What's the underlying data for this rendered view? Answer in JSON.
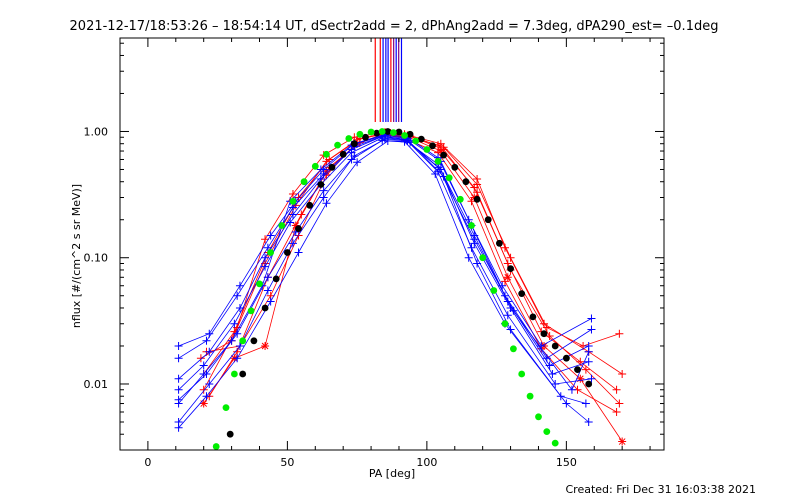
{
  "chart_data": {
    "type": "scatter",
    "title": "2021-12-17/18:53:26 – 18:54:14 UT, dSectr2add = 2, dPhAng2add = 7.3deg, dPA290_est= –0.1deg",
    "xlabel": "PA [deg]",
    "ylabel": "nflux [#/(cm^2 s sr MeV)]",
    "footer": "Created: Fri Dec 31 16:03:38 2021",
    "xlim": [
      -10,
      185
    ],
    "ylim": [
      0.003,
      5.5
    ],
    "yscale": "log",
    "x_ticks": [
      {
        "v": 0,
        "label": "0"
      },
      {
        "v": 50,
        "label": "50"
      },
      {
        "v": 100,
        "label": "100"
      },
      {
        "v": 150,
        "label": "150"
      }
    ],
    "y_ticks": [
      {
        "v": 0.01,
        "label": "0.01"
      },
      {
        "v": 0.1,
        "label": "0.10"
      },
      {
        "v": 1,
        "label": "1.00"
      }
    ],
    "colors": {
      "red": "#ff0000",
      "blue": "#0000ff",
      "green": "#00ee00",
      "black": "#000000",
      "purple": "#800080"
    },
    "vertical_markers": [
      {
        "x": 81.5,
        "color": "#ff0000"
      },
      {
        "x": 83.3,
        "color": "#ff0000"
      },
      {
        "x": 84.3,
        "color": "#0000ff"
      },
      {
        "x": 85.3,
        "color": "#0000ff"
      },
      {
        "x": 86.1,
        "color": "#0000ff"
      },
      {
        "x": 87.1,
        "color": "#ff0000"
      },
      {
        "x": 88.1,
        "color": "#800080"
      },
      {
        "x": 89.0,
        "color": "#0000ff"
      },
      {
        "x": 89.9,
        "color": "#800080"
      },
      {
        "x": 90.9,
        "color": "#0000ff"
      }
    ],
    "series": [
      {
        "color": "#ff0000",
        "marker": "plus",
        "x": [
          20,
          32,
          42,
          52,
          63,
          74,
          85,
          92,
          105,
          118,
          128,
          142,
          158,
          170
        ],
        "y": [
          0.009,
          0.028,
          0.14,
          0.32,
          0.65,
          0.9,
          0.99,
          0.95,
          0.8,
          0.42,
          0.12,
          0.03,
          0.018,
          0.012
        ]
      },
      {
        "color": "#ff0000",
        "marker": "plus",
        "x": [
          20,
          31,
          43,
          54,
          65,
          76,
          86,
          93,
          106,
          118,
          130,
          143,
          156,
          169
        ],
        "y": [
          0.012,
          0.026,
          0.11,
          0.3,
          0.6,
          0.88,
          0.98,
          0.93,
          0.75,
          0.38,
          0.1,
          0.028,
          0.02,
          0.025
        ]
      },
      {
        "color": "#ff0000",
        "marker": "plus",
        "x": [
          19,
          30,
          42,
          53,
          64,
          75,
          86,
          92,
          104,
          117,
          129,
          141,
          155,
          168
        ],
        "y": [
          0.016,
          0.022,
          0.09,
          0.26,
          0.58,
          0.86,
          0.97,
          0.94,
          0.78,
          0.36,
          0.09,
          0.026,
          0.015,
          0.009
        ]
      },
      {
        "color": "#ff0000",
        "marker": "plus",
        "x": [
          22,
          32,
          43,
          55,
          65,
          76,
          87,
          94,
          106,
          118,
          130,
          144,
          157,
          169
        ],
        "y": [
          0.008,
          0.018,
          0.07,
          0.22,
          0.52,
          0.82,
          0.97,
          0.92,
          0.72,
          0.33,
          0.08,
          0.024,
          0.013,
          0.007
        ]
      },
      {
        "color": "#ff0000",
        "marker": "star",
        "x": [
          20,
          31,
          42,
          53,
          64,
          75,
          86,
          93,
          105,
          117,
          129,
          142,
          155,
          170
        ],
        "y": [
          0.007,
          0.016,
          0.02,
          0.18,
          0.48,
          0.8,
          0.96,
          0.91,
          0.7,
          0.3,
          0.07,
          0.02,
          0.011,
          0.0035
        ]
      },
      {
        "color": "#ff0000",
        "marker": "plus",
        "x": [
          21,
          33,
          44,
          54,
          64,
          74,
          84,
          91,
          104,
          116,
          128,
          141,
          154,
          168
        ],
        "y": [
          0.018,
          0.02,
          0.05,
          0.15,
          0.45,
          0.78,
          0.95,
          0.9,
          0.68,
          0.28,
          0.065,
          0.019,
          0.009,
          0.006
        ]
      },
      {
        "color": "#0000ff",
        "marker": "plus",
        "x": [
          11,
          22,
          33,
          44,
          53,
          63,
          74,
          85,
          93,
          104,
          115,
          127,
          141,
          159
        ],
        "y": [
          0.02,
          0.025,
          0.06,
          0.15,
          0.28,
          0.5,
          0.8,
          0.95,
          0.9,
          0.62,
          0.2,
          0.06,
          0.02,
          0.033
        ]
      },
      {
        "color": "#0000ff",
        "marker": "plus",
        "x": [
          11,
          21,
          32,
          43,
          52,
          63,
          74,
          85,
          93,
          105,
          116,
          128,
          143,
          159
        ],
        "y": [
          0.016,
          0.022,
          0.05,
          0.12,
          0.25,
          0.46,
          0.76,
          0.93,
          0.88,
          0.58,
          0.18,
          0.05,
          0.016,
          0.027
        ]
      },
      {
        "color": "#0000ff",
        "marker": "plus",
        "x": [
          11,
          22,
          33,
          42,
          52,
          62,
          73,
          84,
          92,
          104,
          117,
          129,
          144,
          158
        ],
        "y": [
          0.011,
          0.018,
          0.04,
          0.1,
          0.22,
          0.42,
          0.72,
          0.91,
          0.86,
          0.55,
          0.15,
          0.045,
          0.014,
          0.02
        ]
      },
      {
        "color": "#0000ff",
        "marker": "plus",
        "x": [
          11,
          20,
          31,
          42,
          51,
          62,
          73,
          84,
          93,
          105,
          117,
          130,
          145,
          158
        ],
        "y": [
          0.009,
          0.014,
          0.03,
          0.085,
          0.19,
          0.38,
          0.68,
          0.89,
          0.85,
          0.5,
          0.13,
          0.04,
          0.012,
          0.015
        ]
      },
      {
        "color": "#0000ff",
        "marker": "plus",
        "x": [
          11,
          21,
          32,
          43,
          53,
          63,
          74,
          85,
          93,
          104,
          116,
          129,
          146,
          159
        ],
        "y": [
          0.0075,
          0.012,
          0.025,
          0.07,
          0.16,
          0.34,
          0.64,
          0.87,
          0.84,
          0.48,
          0.12,
          0.035,
          0.01,
          0.011
        ]
      },
      {
        "color": "#0000ff",
        "marker": "plus",
        "x": [
          11,
          22,
          33,
          43,
          52,
          63,
          73,
          84,
          92,
          103,
          115,
          128,
          148,
          157
        ],
        "y": [
          0.005,
          0.01,
          0.02,
          0.055,
          0.13,
          0.3,
          0.6,
          0.85,
          0.83,
          0.46,
          0.1,
          0.03,
          0.008,
          0.007
        ]
      },
      {
        "color": "#0000ff",
        "marker": "plus",
        "x": [
          11,
          21,
          32,
          44,
          54,
          64,
          75,
          86,
          94,
          106,
          118,
          130,
          150,
          158
        ],
        "y": [
          0.0045,
          0.008,
          0.016,
          0.045,
          0.11,
          0.27,
          0.57,
          0.84,
          0.82,
          0.44,
          0.09,
          0.027,
          0.007,
          0.005
        ]
      },
      {
        "color": "#0000ff",
        "marker": "plus",
        "x": [
          11,
          20,
          30,
          41,
          51,
          62,
          73,
          84,
          92,
          104,
          117,
          131,
          152,
          158
        ],
        "y": [
          0.007,
          0.012,
          0.022,
          0.06,
          0.28,
          0.5,
          0.78,
          0.92,
          0.87,
          0.52,
          0.14,
          0.038,
          0.009,
          0.018
        ]
      },
      {
        "color": "#000000",
        "marker": "dot",
        "x": [
          29.5,
          34,
          38,
          42,
          46,
          50,
          54,
          58,
          62,
          66,
          70,
          74,
          78,
          82,
          86,
          90,
          94,
          98,
          102,
          106,
          110,
          114,
          118,
          122,
          126,
          130,
          134,
          138,
          142,
          146,
          150,
          154,
          158
        ],
        "y": [
          0.004,
          0.012,
          0.022,
          0.04,
          0.068,
          0.11,
          0.17,
          0.26,
          0.38,
          0.52,
          0.66,
          0.8,
          0.9,
          0.97,
          1.0,
          0.99,
          0.95,
          0.87,
          0.77,
          0.65,
          0.52,
          0.4,
          0.29,
          0.2,
          0.13,
          0.082,
          0.052,
          0.034,
          0.025,
          0.02,
          0.016,
          0.013,
          0.01
        ]
      },
      {
        "color": "#00ee00",
        "marker": "dot",
        "x": [
          24.5,
          28,
          31,
          34,
          37,
          40,
          44,
          48,
          52,
          56,
          60,
          64,
          68,
          72,
          76,
          80,
          84,
          88,
          92,
          96,
          100,
          104,
          108,
          112,
          116,
          120,
          124,
          128,
          131,
          134,
          137,
          140,
          143,
          146
        ],
        "y": [
          0.0032,
          0.0065,
          0.012,
          0.022,
          0.038,
          0.062,
          0.11,
          0.18,
          0.28,
          0.4,
          0.53,
          0.66,
          0.78,
          0.88,
          0.95,
          0.99,
          1.0,
          0.98,
          0.93,
          0.84,
          0.72,
          0.58,
          0.43,
          0.29,
          0.18,
          0.1,
          0.055,
          0.03,
          0.019,
          0.012,
          0.008,
          0.0055,
          0.0042,
          0.0034
        ]
      }
    ]
  }
}
